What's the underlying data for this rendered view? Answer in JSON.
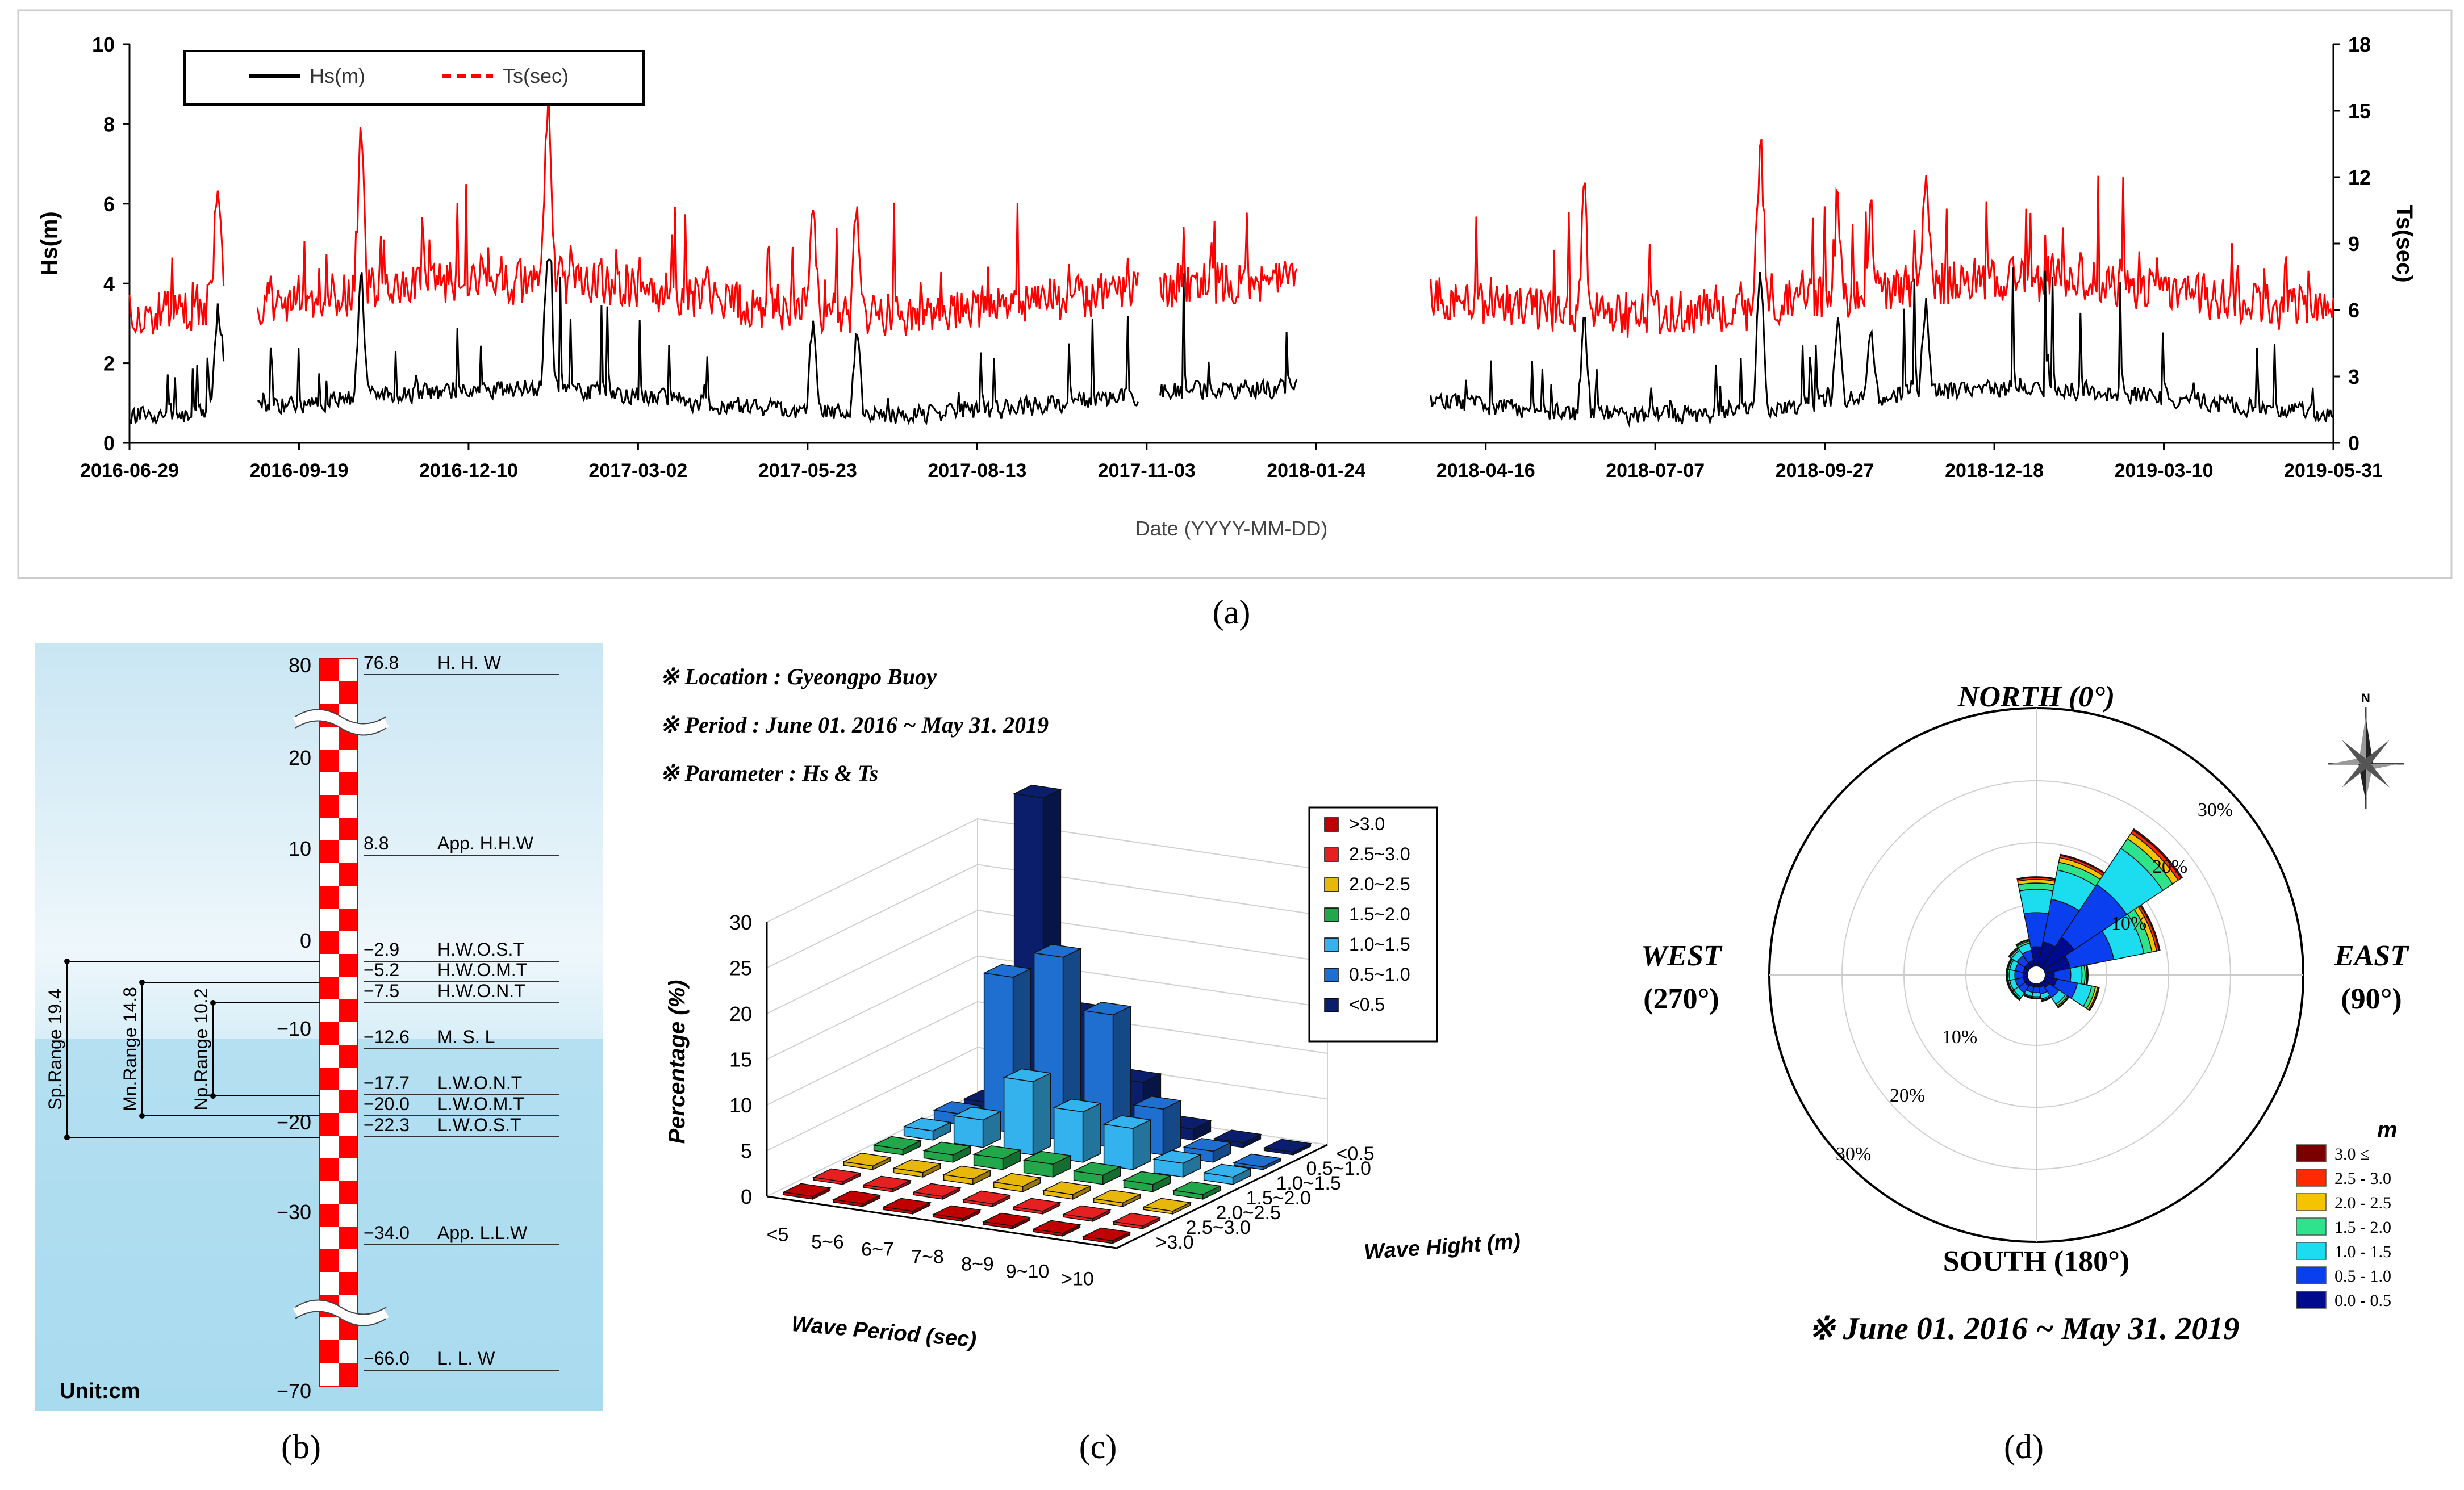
{
  "panel_labels": {
    "a": "(a)",
    "b": "(b)",
    "c": "(c)",
    "d": "(d)"
  },
  "chart_data": [
    {
      "id": "a",
      "type": "line",
      "xlabel": "Date (YYYY-MM-DD)",
      "ylabel": "Hs(m)",
      "ylabel_right": "Ts(sec)",
      "ylim": [
        0,
        10
      ],
      "ylim_right": [
        0,
        18
      ],
      "yticks": [
        0,
        2,
        4,
        6,
        8,
        10
      ],
      "yticks_right": [
        0,
        3,
        6,
        9,
        12,
        15,
        18
      ],
      "x_ticks": [
        "2016-06-29",
        "2016-09-19",
        "2016-12-10",
        "2017-03-02",
        "2017-05-23",
        "2017-08-13",
        "2017-11-03",
        "2018-01-24",
        "2018-04-16",
        "2018-07-07",
        "2018-09-27",
        "2018-12-18",
        "2019-03-10",
        "2019-05-31"
      ],
      "legend_position": "top-left",
      "series": [
        {
          "name": "Hs(m)",
          "color": "#000000",
          "axis": "left"
        },
        {
          "name": "Ts(sec)",
          "color": "#ff0000",
          "axis": "right"
        }
      ]
    },
    {
      "id": "b",
      "type": "table",
      "unit_label": "Unit:cm",
      "scale_ticks": [
        "80",
        "20",
        "10",
        "0",
        "-10",
        "-20",
        "-30",
        "-70"
      ],
      "levels": [
        {
          "value": "76.8",
          "label": "H.  H.  W"
        },
        {
          "value": "8.8",
          "label": "App. H.H.W"
        },
        {
          "value": "-2.9",
          "label": "H.W.O.S.T"
        },
        {
          "value": "-5.2",
          "label": "H.W.O.M.T"
        },
        {
          "value": "-7.5",
          "label": "H.W.O.N.T"
        },
        {
          "value": "-12.6",
          "label": "M.  S.  L"
        },
        {
          "value": "-17.7",
          "label": "L.W.O.N.T"
        },
        {
          "value": "-20.0",
          "label": "L.W.O.M.T"
        },
        {
          "value": "-22.3",
          "label": "L.W.O.S.T"
        },
        {
          "value": "-34.0",
          "label": "App. L.L.W"
        },
        {
          "value": "-66.0",
          "label": "L.  L.  W"
        }
      ],
      "ranges": [
        "Sp.Range 19.4",
        "Mn.Range 14.8",
        "Np.Range 10.2"
      ]
    },
    {
      "id": "c",
      "type": "bar",
      "info": [
        "※ Location : Gyeongpo Buoy",
        "※ Period : June 01. 2016 ~ May 31. 2019",
        "※ Parameter : Hs & Ts"
      ],
      "xlabel": "Wave Period (sec)",
      "ylabel": "Percentage (%)",
      "zlabel": "Wave Hight (m)",
      "zlim": [
        0,
        30
      ],
      "zticks": [
        0,
        5,
        10,
        15,
        20,
        25,
        30
      ],
      "periods": [
        "<5",
        "5~6",
        "6~7",
        "7~8",
        "8~9",
        "9~10",
        ">10"
      ],
      "heights": [
        "<0.5",
        "0.5~1.0",
        "1.0~1.5",
        "1.5~2.0",
        "2.0~2.5",
        "2.5~3.0",
        ">3.0"
      ],
      "legend": [
        ">3.0",
        "2.5~3.0",
        "2.0~2.5",
        "1.5~2.0",
        "1.0~1.5",
        "0.5~1.0",
        "<0.5"
      ],
      "colors": [
        "#0b1e6b",
        "#1e6fd0",
        "#34b2ee",
        "#22a84a",
        "#e8b70c",
        "#e52020",
        "#c00000"
      ],
      "values": [
        [
          0.8,
          35.0,
          12.0,
          5.5,
          1.2,
          0.5,
          0.3
        ],
        [
          1.2,
          17.0,
          20.0,
          14.5,
          5.0,
          1.2,
          0.3
        ],
        [
          1.0,
          3.0,
          8.0,
          5.5,
          4.5,
          1.5,
          0.8
        ],
        [
          0.6,
          0.8,
          1.2,
          1.4,
          1.0,
          0.8,
          0.5
        ],
        [
          0.4,
          0.5,
          0.6,
          0.6,
          0.5,
          0.4,
          0.3
        ],
        [
          0.3,
          0.3,
          0.3,
          0.3,
          0.3,
          0.3,
          0.3
        ],
        [
          0.3,
          0.3,
          0.3,
          0.3,
          0.3,
          0.3,
          0.3
        ]
      ]
    },
    {
      "id": "d",
      "type": "area",
      "directions": {
        "north": "NORTH (0°)",
        "east": "EAST",
        "east_deg": "(90°)",
        "west": "WEST",
        "west_deg": "(270°)",
        "south": "SOUTH (180°)"
      },
      "north_mark": "N",
      "rings": [
        "10%",
        "20%",
        "30%"
      ],
      "legend_title": "m",
      "legend": [
        "3.0 ≤",
        "2.5 - 3.0",
        "2.0 - 2.5",
        "1.5 - 2.0",
        "1.0 - 1.5",
        "0.5 - 1.0",
        "0.0 - 0.5"
      ],
      "colors": [
        "#7a0000",
        "#ff2a00",
        "#f5c400",
        "#2fe38c",
        "#1cdcef",
        "#0a3ff0",
        "#000a8c"
      ],
      "caption": "※ June 01. 2016 ~ May 31. 2019",
      "sectors": [
        {
          "dir": 0,
          "total": 14.5
        },
        {
          "dir": 22.5,
          "total": 18.5
        },
        {
          "dir": 45,
          "total": 27.0
        },
        {
          "dir": 67.5,
          "total": 19.0
        },
        {
          "dir": 90,
          "total": 7.0
        },
        {
          "dir": 112.5,
          "total": 9.0
        },
        {
          "dir": 135,
          "total": 5.0
        },
        {
          "dir": 157.5,
          "total": 3.0
        },
        {
          "dir": 180,
          "total": 2.5
        },
        {
          "dir": 202.5,
          "total": 2.5
        },
        {
          "dir": 225,
          "total": 3.5
        },
        {
          "dir": 247.5,
          "total": 3.5
        },
        {
          "dir": 270,
          "total": 3.5
        },
        {
          "dir": 292.5,
          "total": 3.5
        },
        {
          "dir": 315,
          "total": 4.0
        },
        {
          "dir": 337.5,
          "total": 4.5
        }
      ]
    }
  ]
}
